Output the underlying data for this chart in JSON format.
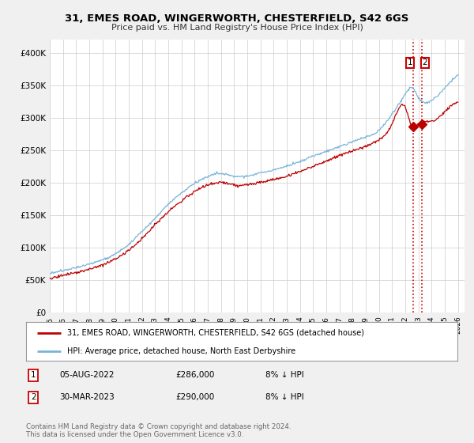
{
  "title": "31, EMES ROAD, WINGERWORTH, CHESTERFIELD, S42 6GS",
  "subtitle": "Price paid vs. HM Land Registry's House Price Index (HPI)",
  "ylim": [
    0,
    420000
  ],
  "yticks": [
    0,
    50000,
    100000,
    150000,
    200000,
    250000,
    300000,
    350000,
    400000
  ],
  "ytick_labels": [
    "£0",
    "£50K",
    "£100K",
    "£150K",
    "£200K",
    "£250K",
    "£300K",
    "£350K",
    "£400K"
  ],
  "xlim_start": 1995.0,
  "xlim_end": 2026.5,
  "xtick_years": [
    1995,
    1996,
    1997,
    1998,
    1999,
    2000,
    2001,
    2002,
    2003,
    2004,
    2005,
    2006,
    2007,
    2008,
    2009,
    2010,
    2011,
    2012,
    2013,
    2014,
    2015,
    2016,
    2017,
    2018,
    2019,
    2020,
    2021,
    2022,
    2023,
    2024,
    2025,
    2026
  ],
  "hpi_color": "#7ab4d8",
  "price_color": "#bb0000",
  "annotation_box_color": "#cc0000",
  "vline_color": "#cc0000",
  "legend_label1": "31, EMES ROAD, WINGERWORTH, CHESTERFIELD, S42 6GS (detached house)",
  "legend_label2": "HPI: Average price, detached house, North East Derbyshire",
  "sale1_label": "1",
  "sale1_date": "05-AUG-2022",
  "sale1_price": "£286,000",
  "sale1_note": "8% ↓ HPI",
  "sale2_label": "2",
  "sale2_date": "30-MAR-2023",
  "sale2_price": "£290,000",
  "sale2_note": "8% ↓ HPI",
  "footer": "Contains HM Land Registry data © Crown copyright and database right 2024.\nThis data is licensed under the Open Government Licence v3.0.",
  "marker1_x": 2022.6,
  "marker2_x": 2023.25,
  "marker1_y": 286000,
  "marker2_y": 290000,
  "bg_color": "#f0f0f0",
  "plot_bg_color": "#ffffff",
  "grid_color": "#cccccc"
}
